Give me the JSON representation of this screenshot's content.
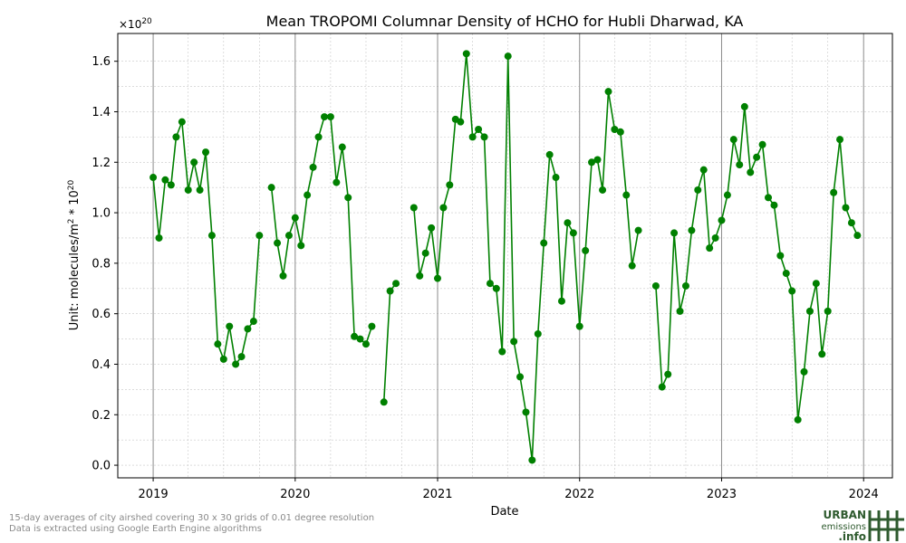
{
  "chart_data": {
    "type": "line",
    "title": "Mean TROPOMI Columnar Density of HCHO for Hubli Dharwad, KA",
    "xlabel": "Date",
    "ylabel_prefix": "Unit: molecules/m",
    "ylabel_suffix": " * 10",
    "y_multiplier_label": "×10",
    "exponent": "20",
    "squared": "2",
    "xlim": [
      "2018-10-02",
      "2024-03-15"
    ],
    "ylim": [
      -0.05,
      1.71
    ],
    "x_ticks": [
      "2019-01-01",
      "2020-01-01",
      "2021-01-01",
      "2022-01-01",
      "2023-01-01",
      "2024-01-01"
    ],
    "x_tick_labels": [
      "2019",
      "2020",
      "2021",
      "2022",
      "2023",
      "2024"
    ],
    "y_ticks": [
      0.0,
      0.2,
      0.4,
      0.6,
      0.8,
      1.0,
      1.2,
      1.4,
      1.6
    ],
    "y_tick_labels": [
      "0.0",
      "0.2",
      "0.4",
      "0.6",
      "0.8",
      "1.0",
      "1.2",
      "1.4",
      "1.6"
    ],
    "grid": true,
    "color": "#008000",
    "series": [
      {
        "points": [
          [
            "2019-01-01",
            1.14
          ],
          [
            "2019-01-16",
            0.9
          ],
          [
            "2019-02-01",
            1.13
          ],
          [
            "2019-02-16",
            1.11
          ],
          [
            "2019-03-01",
            1.3
          ],
          [
            "2019-03-16",
            1.36
          ],
          [
            "2019-04-01",
            1.09
          ],
          [
            "2019-04-16",
            1.2
          ],
          [
            "2019-05-01",
            1.09
          ],
          [
            "2019-05-16",
            1.24
          ],
          [
            "2019-06-01",
            0.91
          ],
          [
            "2019-06-16",
            0.48
          ],
          [
            "2019-07-01",
            0.42
          ],
          [
            "2019-07-16",
            0.55
          ],
          [
            "2019-08-01",
            0.4
          ],
          [
            "2019-08-16",
            0.43
          ],
          [
            "2019-09-01",
            0.54
          ],
          [
            "2019-09-16",
            0.57
          ],
          [
            "2019-10-01",
            0.91
          ],
          null,
          [
            "2019-11-01",
            1.1
          ],
          [
            "2019-11-16",
            0.88
          ],
          [
            "2019-12-01",
            0.75
          ],
          [
            "2019-12-16",
            0.91
          ],
          [
            "2020-01-01",
            0.98
          ],
          [
            "2020-01-16",
            0.87
          ],
          [
            "2020-02-01",
            1.07
          ],
          [
            "2020-02-16",
            1.18
          ],
          [
            "2020-03-01",
            1.3
          ],
          [
            "2020-03-16",
            1.38
          ],
          [
            "2020-04-01",
            1.38
          ],
          [
            "2020-04-16",
            1.12
          ],
          [
            "2020-05-01",
            1.26
          ],
          [
            "2020-05-16",
            1.06
          ],
          [
            "2020-06-01",
            0.51
          ],
          [
            "2020-06-16",
            0.5
          ],
          [
            "2020-07-01",
            0.48
          ],
          [
            "2020-07-16",
            0.55
          ],
          null,
          [
            "2020-08-16",
            0.25
          ],
          [
            "2020-09-01",
            0.69
          ],
          [
            "2020-09-16",
            0.72
          ],
          null,
          [
            "2020-11-01",
            1.02
          ],
          [
            "2020-11-16",
            0.75
          ],
          [
            "2020-12-01",
            0.84
          ],
          [
            "2020-12-16",
            0.94
          ],
          [
            "2021-01-01",
            0.74
          ],
          [
            "2021-01-16",
            1.02
          ],
          [
            "2021-02-01",
            1.11
          ],
          [
            "2021-02-16",
            1.37
          ],
          [
            "2021-03-01",
            1.36
          ],
          [
            "2021-03-16",
            1.63
          ],
          [
            "2021-04-01",
            1.3
          ],
          [
            "2021-04-16",
            1.33
          ],
          [
            "2021-05-01",
            1.3
          ],
          [
            "2021-05-16",
            0.72
          ],
          [
            "2021-06-01",
            0.7
          ],
          [
            "2021-06-16",
            0.45
          ],
          [
            "2021-07-01",
            1.62
          ],
          [
            "2021-07-16",
            0.49
          ],
          [
            "2021-08-01",
            0.35
          ],
          [
            "2021-08-16",
            0.21
          ],
          [
            "2021-09-01",
            0.02
          ],
          [
            "2021-09-16",
            0.52
          ],
          [
            "2021-10-01",
            0.88
          ],
          [
            "2021-10-16",
            1.23
          ],
          [
            "2021-11-01",
            1.14
          ],
          [
            "2021-11-16",
            0.65
          ],
          [
            "2021-12-01",
            0.96
          ],
          [
            "2021-12-16",
            0.92
          ],
          [
            "2022-01-01",
            0.55
          ],
          [
            "2022-01-16",
            0.85
          ],
          [
            "2022-02-01",
            1.2
          ],
          [
            "2022-02-16",
            1.21
          ],
          [
            "2022-03-01",
            1.09
          ],
          [
            "2022-03-16",
            1.48
          ],
          [
            "2022-04-01",
            1.33
          ],
          [
            "2022-04-16",
            1.32
          ],
          [
            "2022-05-01",
            1.07
          ],
          [
            "2022-05-16",
            0.79
          ],
          [
            "2022-06-01",
            0.93
          ],
          null,
          [
            "2022-07-16",
            0.71
          ],
          [
            "2022-08-01",
            0.31
          ],
          [
            "2022-08-16",
            0.36
          ],
          [
            "2022-09-01",
            0.92
          ],
          [
            "2022-09-16",
            0.61
          ],
          [
            "2022-10-01",
            0.71
          ],
          [
            "2022-10-16",
            0.93
          ],
          [
            "2022-11-01",
            1.09
          ],
          [
            "2022-11-16",
            1.17
          ],
          [
            "2022-12-01",
            0.86
          ],
          [
            "2022-12-16",
            0.9
          ],
          [
            "2023-01-01",
            0.97
          ],
          [
            "2023-01-16",
            1.07
          ],
          [
            "2023-02-01",
            1.29
          ],
          [
            "2023-02-16",
            1.19
          ],
          [
            "2023-03-01",
            1.42
          ],
          [
            "2023-03-16",
            1.16
          ],
          [
            "2023-04-01",
            1.22
          ],
          [
            "2023-04-16",
            1.27
          ],
          [
            "2023-05-01",
            1.06
          ],
          [
            "2023-05-16",
            1.03
          ],
          [
            "2023-06-01",
            0.83
          ],
          [
            "2023-06-16",
            0.76
          ],
          [
            "2023-07-01",
            0.69
          ],
          [
            "2023-07-16",
            0.18
          ],
          [
            "2023-08-01",
            0.37
          ],
          [
            "2023-08-16",
            0.61
          ],
          [
            "2023-09-01",
            0.72
          ],
          [
            "2023-09-16",
            0.44
          ],
          [
            "2023-10-01",
            0.61
          ],
          [
            "2023-10-16",
            1.08
          ],
          [
            "2023-11-01",
            1.29
          ],
          [
            "2023-11-16",
            1.02
          ],
          [
            "2023-12-01",
            0.96
          ],
          [
            "2023-12-16",
            0.91
          ]
        ]
      }
    ]
  },
  "footnote": {
    "line1": "15-day averages of city airshed covering 30 x 30 grids of 0.01 degree resolution",
    "line2": "Data is extracted using Google Earth Engine algorithms"
  },
  "logo": {
    "word1": "URBAN",
    "word2": "emissions",
    "word3": ".info",
    "color": "#2e5a2e"
  }
}
